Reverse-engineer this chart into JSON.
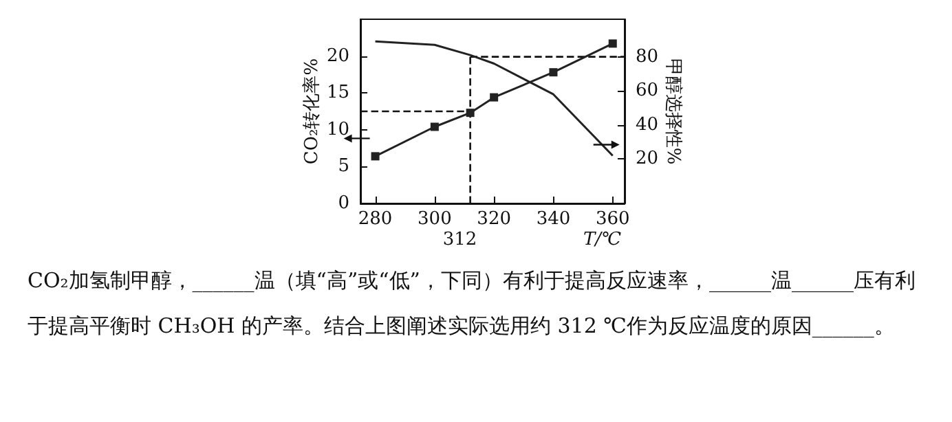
{
  "chart_data": {
    "type": "line",
    "xlabel": "T/℃",
    "ylabel": "CO₂转化率%",
    "y2label": "甲醇选择性%",
    "xlim": [
      275,
      364
    ],
    "xticks": [
      280,
      300,
      320,
      340,
      360
    ],
    "ylim": [
      0,
      25
    ],
    "yticks": [
      0,
      5,
      10,
      15,
      20
    ],
    "y2lim": [
      -6,
      102
    ],
    "y2ticks": [
      20,
      40,
      60,
      80
    ],
    "series": [
      {
        "color": "#222222",
        "marker": "square",
        "x": [
          280,
          300,
          312,
          320,
          340,
          360
        ],
        "values": [
          6.4,
          10.4,
          12.3,
          14.4,
          17.8,
          21.7
        ]
      },
      {
        "color": "#222222",
        "marker": "none",
        "axis": "y2",
        "x": [
          280,
          300,
          312,
          320,
          340,
          360
        ],
        "values": [
          89,
          87,
          81,
          76,
          58,
          22
        ]
      }
    ],
    "ref_lines": [
      {
        "axis": "x",
        "value": 312,
        "label": "312",
        "line_style": "dashed"
      },
      {
        "axis": "y",
        "value": 12.5,
        "line_style": "dashed"
      },
      {
        "axis": "y2",
        "value": 80,
        "line_style": "dashed"
      }
    ],
    "annotations": [
      "CO₂加氢制甲醇，______温（填“高”或“低”，下同）有利于提高反应速率，______温______压有利于提高平衡时 CH₃OH 的产率。结合上图阐述实际选用约 312 ℃作为反应温度的原因______。"
    ]
  }
}
